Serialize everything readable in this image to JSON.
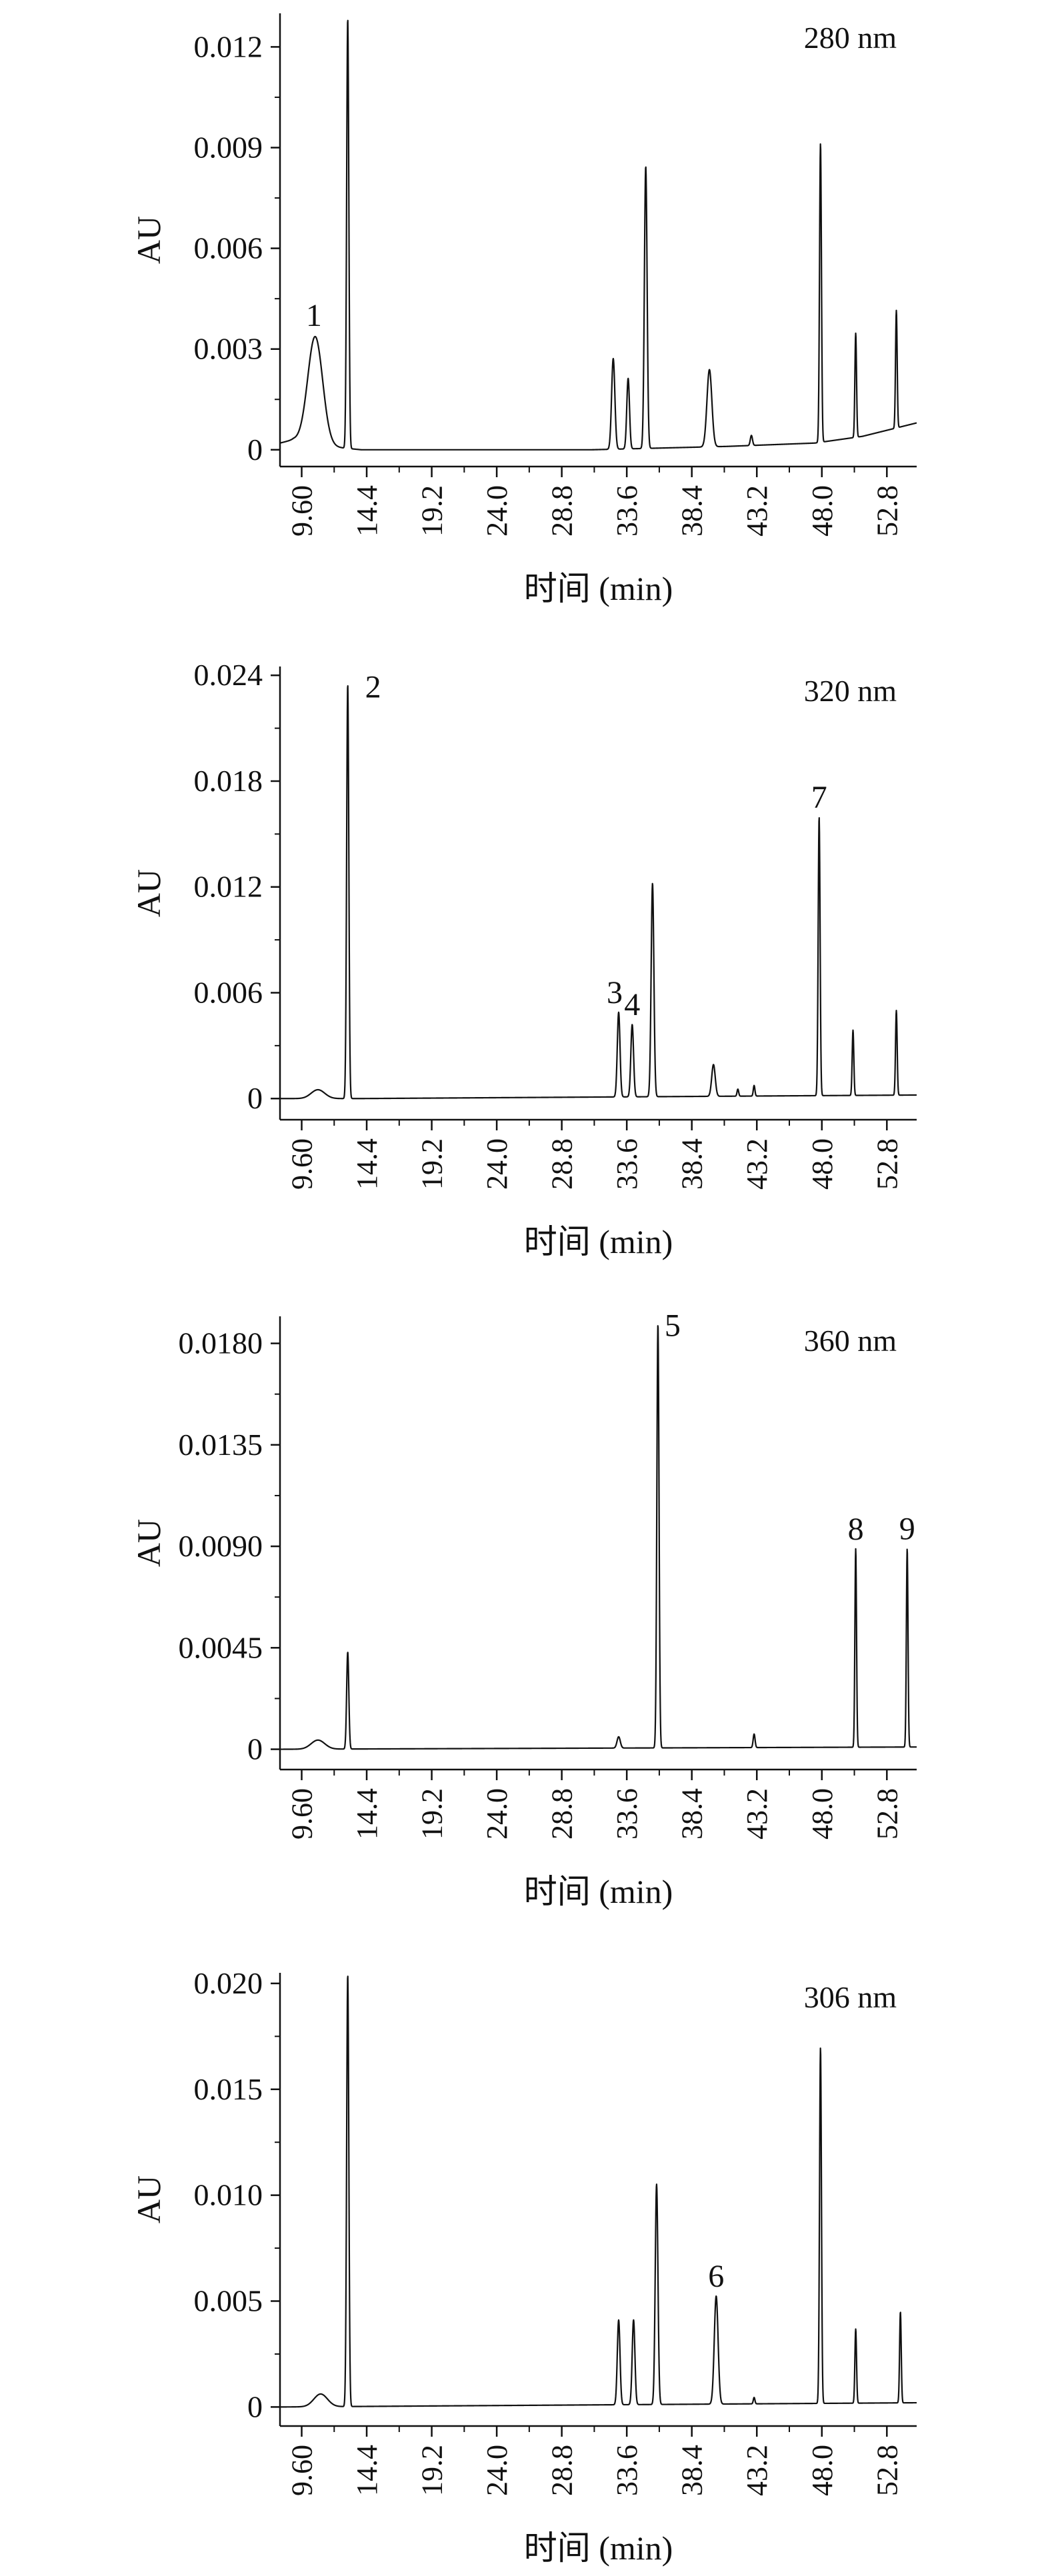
{
  "chart_data": [
    {
      "type": "line",
      "title": "",
      "annotation": "280 nm",
      "xlabel": "时间 (min)",
      "ylabel": "AU",
      "xlim": [
        8.0,
        55.0
      ],
      "ylim": [
        -0.0005,
        0.013
      ],
      "xticks": [
        9.6,
        14.4,
        19.2,
        24.0,
        28.8,
        33.6,
        38.4,
        43.2,
        48.0,
        52.8
      ],
      "xtick_labels": [
        "9.60",
        "14.4",
        "19.2",
        "24.0",
        "28.8",
        "33.6",
        "38.4",
        "43.2",
        "48.0",
        "52.8"
      ],
      "yticks": [
        0,
        0.003,
        0.006,
        0.009,
        0.012
      ],
      "ytick_labels": [
        "0",
        "0.003",
        "0.006",
        "0.009",
        "0.012"
      ],
      "baseline": [
        [
          8.0,
          0.0002
        ],
        [
          9.0,
          0.0003
        ],
        [
          11.5,
          0.0001
        ],
        [
          14.0,
          0.0
        ],
        [
          31.0,
          0.0
        ],
        [
          41.0,
          0.0001
        ],
        [
          47.5,
          0.0002
        ],
        [
          51.0,
          0.0004
        ],
        [
          55.0,
          0.0008
        ]
      ],
      "peaks": [
        {
          "rt": 10.6,
          "height": 0.0032,
          "width": 0.55,
          "label": "1"
        },
        {
          "rt": 13.0,
          "height": 0.0128,
          "width": 0.08
        },
        {
          "rt": 32.6,
          "height": 0.0027,
          "width": 0.12
        },
        {
          "rt": 33.7,
          "height": 0.0021,
          "width": 0.1
        },
        {
          "rt": 35.0,
          "height": 0.0084,
          "width": 0.1
        },
        {
          "rt": 39.7,
          "height": 0.0023,
          "width": 0.18
        },
        {
          "rt": 42.8,
          "height": 0.0003,
          "width": 0.08
        },
        {
          "rt": 47.9,
          "height": 0.0089,
          "width": 0.07
        },
        {
          "rt": 50.5,
          "height": 0.0031,
          "width": 0.06
        },
        {
          "rt": 53.5,
          "height": 0.0035,
          "width": 0.06
        }
      ]
    },
    {
      "type": "line",
      "title": "",
      "annotation": "320 nm",
      "xlabel": "时间 (min)",
      "ylabel": "AU",
      "xlim": [
        8.0,
        55.0
      ],
      "ylim": [
        -0.0012,
        0.0245
      ],
      "xticks": [
        9.6,
        14.4,
        19.2,
        24.0,
        28.8,
        33.6,
        38.4,
        43.2,
        48.0,
        52.8
      ],
      "xtick_labels": [
        "9.60",
        "14.4",
        "19.2",
        "24.0",
        "28.8",
        "33.6",
        "38.4",
        "43.2",
        "48.0",
        "52.8"
      ],
      "yticks": [
        0,
        0.006,
        0.012,
        0.018,
        0.024
      ],
      "ytick_labels": [
        "0",
        "0.006",
        "0.012",
        "0.018",
        "0.024"
      ],
      "baseline": [
        [
          8.0,
          0.0
        ],
        [
          14.0,
          0.0
        ],
        [
          55.0,
          0.0002
        ]
      ],
      "peaks": [
        {
          "rt": 10.8,
          "height": 0.0005,
          "width": 0.5
        },
        {
          "rt": 13.0,
          "height": 0.0235,
          "width": 0.08,
          "label": "2"
        },
        {
          "rt": 33.0,
          "height": 0.0048,
          "width": 0.1,
          "label": "3"
        },
        {
          "rt": 34.0,
          "height": 0.0041,
          "width": 0.1,
          "label": "4"
        },
        {
          "rt": 35.5,
          "height": 0.0121,
          "width": 0.1
        },
        {
          "rt": 40.0,
          "height": 0.0018,
          "width": 0.13
        },
        {
          "rt": 41.8,
          "height": 0.0004,
          "width": 0.06
        },
        {
          "rt": 43.0,
          "height": 0.0006,
          "width": 0.06
        },
        {
          "rt": 47.8,
          "height": 0.0158,
          "width": 0.07,
          "label": "7"
        },
        {
          "rt": 50.3,
          "height": 0.0037,
          "width": 0.06
        },
        {
          "rt": 53.5,
          "height": 0.0048,
          "width": 0.06
        }
      ]
    },
    {
      "type": "line",
      "title": "",
      "annotation": "360 nm",
      "xlabel": "时间 (min)",
      "ylabel": "AU",
      "xlim": [
        8.0,
        55.0
      ],
      "ylim": [
        -0.0009,
        0.0192
      ],
      "xticks": [
        9.6,
        14.4,
        19.2,
        24.0,
        28.8,
        33.6,
        38.4,
        43.2,
        48.0,
        52.8
      ],
      "xtick_labels": [
        "9.60",
        "14.4",
        "19.2",
        "24.0",
        "28.8",
        "33.6",
        "38.4",
        "43.2",
        "48.0",
        "52.8"
      ],
      "yticks": [
        0,
        0.0045,
        0.009,
        0.0135,
        0.018
      ],
      "ytick_labels": [
        "0",
        "0.0045",
        "0.0090",
        "0.0135",
        "0.0180"
      ],
      "baseline": [
        [
          8.0,
          0.0
        ],
        [
          55.0,
          0.0001
        ]
      ],
      "peaks": [
        {
          "rt": 10.8,
          "height": 0.0004,
          "width": 0.5
        },
        {
          "rt": 13.0,
          "height": 0.0043,
          "width": 0.08
        },
        {
          "rt": 33.0,
          "height": 0.0005,
          "width": 0.12
        },
        {
          "rt": 35.9,
          "height": 0.0188,
          "width": 0.08,
          "label": "5"
        },
        {
          "rt": 43.0,
          "height": 0.0006,
          "width": 0.07
        },
        {
          "rt": 50.5,
          "height": 0.0088,
          "width": 0.06,
          "label": "8"
        },
        {
          "rt": 54.3,
          "height": 0.0088,
          "width": 0.06,
          "label": "9"
        }
      ]
    },
    {
      "type": "line",
      "title": "",
      "annotation": "306 nm",
      "xlabel": "时间 (min)",
      "ylabel": "AU",
      "xlim": [
        8.0,
        55.0
      ],
      "ylim": [
        -0.0009,
        0.0205
      ],
      "xticks": [
        9.6,
        14.4,
        19.2,
        24.0,
        28.8,
        33.6,
        38.4,
        43.2,
        48.0,
        52.8
      ],
      "xtick_labels": [
        "9.60",
        "14.4",
        "19.2",
        "24.0",
        "28.8",
        "33.6",
        "38.4",
        "43.2",
        "48.0",
        "52.8"
      ],
      "yticks": [
        0,
        0.005,
        0.01,
        0.015,
        0.02
      ],
      "ytick_labels": [
        "0",
        "0.005",
        "0.010",
        "0.015",
        "0.020"
      ],
      "baseline": [
        [
          8.0,
          0.0
        ],
        [
          55.0,
          0.0002
        ]
      ],
      "peaks": [
        {
          "rt": 11.0,
          "height": 0.0006,
          "width": 0.5
        },
        {
          "rt": 13.0,
          "height": 0.0204,
          "width": 0.08
        },
        {
          "rt": 33.0,
          "height": 0.004,
          "width": 0.1
        },
        {
          "rt": 34.1,
          "height": 0.004,
          "width": 0.1
        },
        {
          "rt": 35.8,
          "height": 0.0104,
          "width": 0.1
        },
        {
          "rt": 40.2,
          "height": 0.0051,
          "width": 0.14,
          "label": "6"
        },
        {
          "rt": 43.0,
          "height": 0.0003,
          "width": 0.06
        },
        {
          "rt": 47.9,
          "height": 0.0168,
          "width": 0.07
        },
        {
          "rt": 50.5,
          "height": 0.0035,
          "width": 0.06
        },
        {
          "rt": 53.8,
          "height": 0.0043,
          "width": 0.06
        }
      ]
    }
  ]
}
